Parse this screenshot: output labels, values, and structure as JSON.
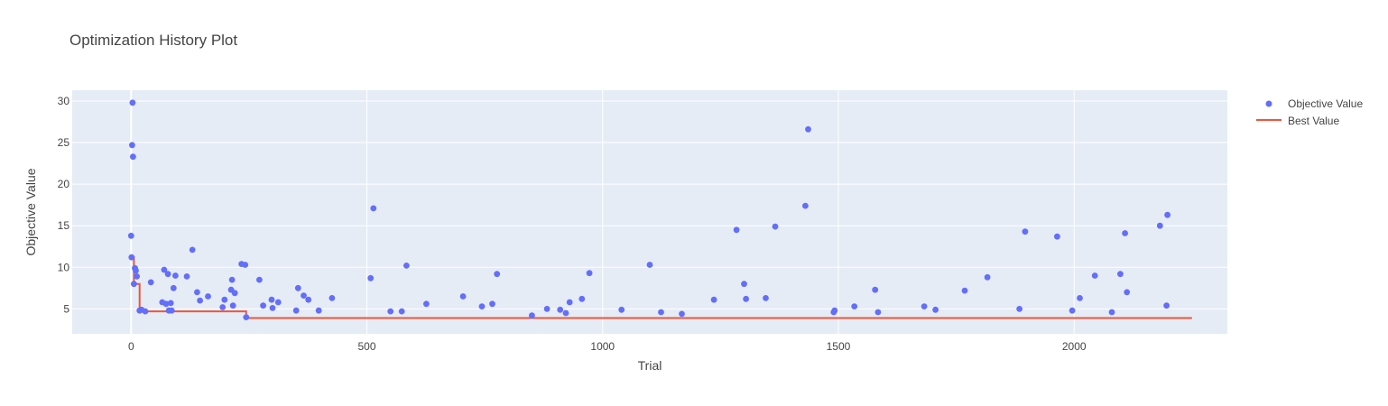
{
  "chart_data": {
    "type": "scatter",
    "title": "Optimization History Plot",
    "xlabel": "Trial",
    "ylabel": "Objective Value",
    "xlim": [
      -125,
      2325
    ],
    "ylim": [
      2.0,
      31.3
    ],
    "xticks": [
      0,
      500,
      1000,
      1500,
      2000
    ],
    "xtick_labels": [
      "0",
      "500",
      "1000",
      "1500",
      "2000"
    ],
    "yticks": [
      5,
      10,
      15,
      20,
      25,
      30
    ],
    "ytick_labels": [
      "5",
      "10",
      "15",
      "20",
      "25",
      "30"
    ],
    "grid": true,
    "legend_position": "top-right",
    "colors": {
      "plot_bg": "#E5ECF6",
      "grid": "#FFFFFF",
      "objective": "#636EFA",
      "best": "#EF553B"
    },
    "series": [
      {
        "name": "Objective Value",
        "mode": "markers",
        "points": [
          [
            0,
            13.8
          ],
          [
            1,
            11.2
          ],
          [
            2,
            24.7
          ],
          [
            3,
            29.8
          ],
          [
            4,
            23.3
          ],
          [
            6,
            8.0
          ],
          [
            8,
            9.9
          ],
          [
            10,
            9.6
          ],
          [
            12,
            8.9
          ],
          [
            18,
            4.8
          ],
          [
            22,
            4.9
          ],
          [
            30,
            4.7
          ],
          [
            42,
            8.2
          ],
          [
            66,
            5.8
          ],
          [
            70,
            9.7
          ],
          [
            74,
            5.6
          ],
          [
            78,
            9.2
          ],
          [
            80,
            4.8
          ],
          [
            84,
            5.7
          ],
          [
            86,
            4.8
          ],
          [
            90,
            7.5
          ],
          [
            94,
            9.0
          ],
          [
            118,
            8.9
          ],
          [
            130,
            12.1
          ],
          [
            140,
            7.0
          ],
          [
            146,
            6.0
          ],
          [
            163,
            6.5
          ],
          [
            194,
            5.2
          ],
          [
            198,
            6.1
          ],
          [
            212,
            7.3
          ],
          [
            214,
            8.5
          ],
          [
            216,
            5.4
          ],
          [
            220,
            6.9
          ],
          [
            234,
            10.4
          ],
          [
            242,
            10.3
          ],
          [
            244,
            4.0
          ],
          [
            272,
            8.5
          ],
          [
            280,
            5.4
          ],
          [
            298,
            6.1
          ],
          [
            300,
            5.1
          ],
          [
            312,
            5.8
          ],
          [
            350,
            4.8
          ],
          [
            354,
            7.5
          ],
          [
            366,
            6.6
          ],
          [
            376,
            6.1
          ],
          [
            398,
            4.8
          ],
          [
            426,
            6.3
          ],
          [
            508,
            8.7
          ],
          [
            514,
            17.1
          ],
          [
            550,
            4.7
          ],
          [
            574,
            4.7
          ],
          [
            584,
            10.2
          ],
          [
            626,
            5.6
          ],
          [
            704,
            6.5
          ],
          [
            744,
            5.3
          ],
          [
            766,
            5.6
          ],
          [
            776,
            9.2
          ],
          [
            850,
            4.2
          ],
          [
            882,
            5.0
          ],
          [
            910,
            4.9
          ],
          [
            922,
            4.5
          ],
          [
            930,
            5.8
          ],
          [
            956,
            6.2
          ],
          [
            972,
            9.3
          ],
          [
            1040,
            4.9
          ],
          [
            1100,
            10.3
          ],
          [
            1124,
            4.6
          ],
          [
            1168,
            4.4
          ],
          [
            1236,
            6.1
          ],
          [
            1284,
            14.5
          ],
          [
            1300,
            8.0
          ],
          [
            1304,
            6.2
          ],
          [
            1346,
            6.3
          ],
          [
            1366,
            14.9
          ],
          [
            1430,
            17.4
          ],
          [
            1436,
            26.6
          ],
          [
            1490,
            4.6
          ],
          [
            1492,
            4.8
          ],
          [
            1534,
            5.3
          ],
          [
            1578,
            7.3
          ],
          [
            1584,
            4.6
          ],
          [
            1682,
            5.3
          ],
          [
            1706,
            4.9
          ],
          [
            1768,
            7.2
          ],
          [
            1816,
            8.8
          ],
          [
            1884,
            5.0
          ],
          [
            1896,
            14.3
          ],
          [
            1964,
            13.7
          ],
          [
            1996,
            4.8
          ],
          [
            2012,
            6.3
          ],
          [
            2044,
            9.0
          ],
          [
            2080,
            4.6
          ],
          [
            2098,
            9.2
          ],
          [
            2108,
            14.1
          ],
          [
            2112,
            7.0
          ],
          [
            2182,
            15.0
          ],
          [
            2196,
            5.4
          ],
          [
            2198,
            16.3
          ]
        ]
      },
      {
        "name": "Best Value",
        "mode": "lines",
        "step_points": [
          [
            0,
            11.2
          ],
          [
            6,
            11.2
          ],
          [
            6,
            8.0
          ],
          [
            18,
            8.0
          ],
          [
            18,
            4.7
          ],
          [
            244,
            4.7
          ],
          [
            244,
            3.9
          ],
          [
            2250,
            3.9
          ]
        ]
      }
    ]
  }
}
